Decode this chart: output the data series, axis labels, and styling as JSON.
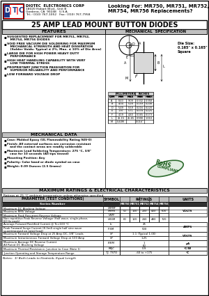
{
  "title": "25 AMP LEAD MOUNT BUTTON DIODES",
  "company": "DIOTEC  ELECTRONICS CORP",
  "address1": "18020 Hobart Blvd., Unit B",
  "address2": "Gardena, CA  90248   U.S.A.",
  "tel": "Tel.: (310) 767-1052   Fax: (310) 767-7958",
  "looking_for_line1": "Looking For: MR750, MR751, MR752,",
  "looking_for_line2": "MR754, MR756 Replacements?",
  "features_title": "FEATURES",
  "mech_title": "MECHANICAL  SPECIFICATION",
  "features": [
    "SUGGESTED REPLACEMENT FOR MR751, MR752,\n   MR754, MR756 DIODES",
    "VOID FREE VACUUM DIE SOLDERING FOR MAXIMUM\n   MECHANICAL STRENGTH AND HEAT DISSIPATION\n   (Solder Voids: Typical ≤ 2%, Max. ≤ 10% of Die Area)",
    "LARGE DIE FOR HIGH POWER HEAVY DUTY\n   PERFORMANCE",
    "HIGH HEAT HANDLING CAPABILITY WITH VERY\n   LOW THERMAL STRESS",
    "PROPRIETARY JUNCTION PASSIVATION FOR\n   SUPERIOR RELIABILITY AND PERFORMANCE",
    "LOW FORWARD VOLTAGE DROP"
  ],
  "mech_data_title": "MECHANICAL DATA",
  "mech_data": [
    "Case: Molded Epoxy (UL Flammability Rating 94V-0)",
    "Finish: All external surfaces are corrosion resistant\n   and the contact areas are readily solderable",
    "Maximum Lead Soldering Temperature: 275 °C, 3/8\"\n   case for 10 seconds (All tips tinned)",
    "Mounting Position: Any",
    "Polarity: Color band or diode symbol on case",
    "Weight: 0.09 Ounces (2.5 Grams)"
  ],
  "die_size": "Die Size:\n0.165\" x 0.165\"\nSquare",
  "dim_rows": [
    [
      "A",
      "8.43",
      "9.09",
      "0.332",
      "0.358"
    ],
    [
      "B",
      "4.04",
      "5.28",
      "0.159",
      "0.208"
    ],
    [
      "D",
      "5.49",
      "5.59",
      "0.216",
      "0.220"
    ],
    [
      "E",
      "1.97",
      "5.71",
      "0.078",
      "0.225"
    ],
    [
      "F",
      "4.19",
      "4.40",
      "0.165",
      "0.173"
    ],
    [
      "L",
      "25.15",
      "25.65",
      "0.990",
      "1.010"
    ],
    [
      "M",
      "0.40M",
      "",
      "0.016\"",
      ""
    ]
  ],
  "ratings_title": "MAXIMUM RATINGS & ELECTRICAL CHARACTERISTICS",
  "ratings_note": "Ratings at 25 °C ambient temperature unless otherwise specified.",
  "series_numbers": [
    "MR750",
    "MR751",
    "MR752",
    "MR754",
    "MR756"
  ],
  "table_data": [
    [
      "Maximum DC Blocking Voltage",
      "VRRM",
      "",
      "",
      "",
      "",
      "",
      ""
    ],
    [
      "Maximum RMS Voltage",
      "VRMS",
      "50",
      "100",
      "200",
      "400",
      "600",
      "VOLTS"
    ],
    [
      "Maximum Peak Recurrent Reverse Voltage",
      "VRM",
      "",
      "",
      "",
      "",
      "",
      ""
    ],
    [
      "Non repetitive Peak Reverse Voltage (Half wave, single phase,\n60 Hz peak)",
      "VRSM",
      "60",
      "120",
      "240",
      "480",
      "720",
      ""
    ],
    [
      "Average Forward Rectified Current @ Tc=100 °C",
      "Io",
      "",
      "25",
      "",
      "",
      "",
      ""
    ],
    [
      "Peak Forward Surge Current (8.3mS single half sine wave\nsuperimposed on rated load)",
      "IFSM",
      "",
      "500",
      "",
      "",
      "",
      "AMPS"
    ],
    [
      "Maximum Forward Voltage Drop at 25 Amp DC, 3/8\" Leads",
      "VF",
      "",
      "1.1 (Typical 1.00)",
      "",
      "",
      "",
      "VOLTS"
    ],
    [
      "Maximum Instantaneous Forward Voltage Drop at 100 Amp",
      "VF",
      "",
      "1.25",
      "",
      "",
      "",
      ""
    ],
    [
      "Maximum Average DC Reverse Current\nAll Rated DC Blocking Voltage",
      "IRRM",
      "",
      "1\n60",
      "",
      "",
      "",
      "µA"
    ],
    [
      "Maximum Thermal Resistance, Junction to Case (Note 1)",
      "RθJC",
      "",
      "0.9",
      "",
      "",
      "",
      "°C/W"
    ],
    [
      "Junction Operating and Storage Temperature Range",
      "TJ, TSTG",
      "",
      "-60 to +175",
      "",
      "",
      "",
      "°C"
    ]
  ],
  "note": "Notes:  1) Both Leads to Heatsink, Equal Length"
}
